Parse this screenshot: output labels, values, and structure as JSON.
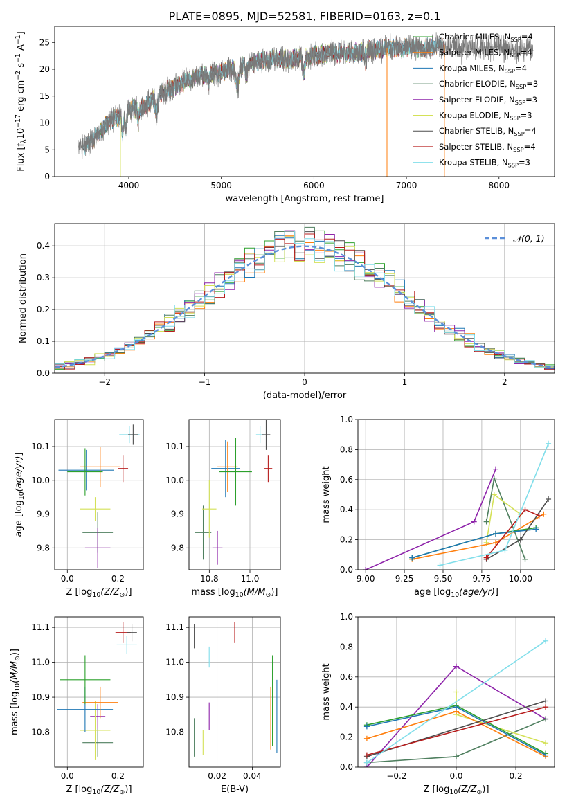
{
  "colors": {
    "chabrier_miles": "#2ca02c",
    "salpeter_miles": "#ff7f0e",
    "kroupa_miles": "#1f77b4",
    "chabrier_elodie": "#4f7f5f",
    "salpeter_elodie": "#8e24aa",
    "kroupa_elodie": "#d4e157",
    "chabrier_stelib": "#4d4d4d",
    "salpeter_stelib": "#b71c1c",
    "kroupa_stelib": "#80deea",
    "normal": "#5b8fd9",
    "grid": "#b0b0b0",
    "spectrum_gray": "#7a7a7a"
  },
  "chart_data": [
    {
      "id": "spectrum",
      "type": "line",
      "title": "PLATE=0895, MJD=52581, FIBERID=0163, z=0.1",
      "xlabel": "wavelength [Angstrom, rest frame]",
      "ylabel": "Flux [f_λ 10^-17 erg cm^-2 s^-1 A^-1]",
      "xlim": [
        3200,
        8600
      ],
      "ylim": [
        0,
        28
      ],
      "xticks": [
        4000,
        5000,
        6000,
        7000,
        8000
      ],
      "yticks": [
        0,
        5,
        10,
        15,
        20,
        25
      ],
      "grid": false,
      "legend_position": "top-right",
      "legend": [
        {
          "label": "Chabrier MILES, N_SSP=4",
          "key": "chabrier_miles"
        },
        {
          "label": "Salpeter MILES, N_SSP=4",
          "key": "salpeter_miles"
        },
        {
          "label": "Kroupa MILES, N_SSP=4",
          "key": "kroupa_miles"
        },
        {
          "label": "Chabrier ELODIE, N_SSP=3",
          "key": "chabrier_elodie"
        },
        {
          "label": "Salpeter ELODIE, N_SSP=3",
          "key": "salpeter_elodie"
        },
        {
          "label": "Kroupa ELODIE, N_SSP=3",
          "key": "kroupa_elodie"
        },
        {
          "label": "Chabrier STELIB, N_SSP=4",
          "key": "chabrier_stelib"
        },
        {
          "label": "Salpeter STELIB, N_SSP=4",
          "key": "salpeter_stelib"
        },
        {
          "label": "Kroupa STELIB, N_SSP=3",
          "key": "kroupa_stelib"
        }
      ],
      "continuum": {
        "x": [
          3450,
          3600,
          3700,
          3800,
          3900,
          4000,
          4100,
          4200,
          4300,
          4400,
          4600,
          4800,
          5000,
          5200,
          5400,
          5600,
          5800,
          6000,
          6200,
          6400,
          6600,
          6800,
          7000,
          7200,
          7400,
          7600,
          7800,
          8000,
          8200,
          8400
        ],
        "y": [
          5.5,
          6.5,
          8.5,
          10.5,
          11,
          12.5,
          12.5,
          13.5,
          15,
          16,
          17.5,
          19,
          19.5,
          20.5,
          21.5,
          22,
          22,
          22.5,
          23,
          23,
          23.5,
          24,
          24,
          24,
          24.5,
          24.5,
          24,
          24,
          23.5,
          23.5
        ]
      },
      "series_ranges": {
        "chabrier_miles": [
          3540,
          7410
        ],
        "salpeter_miles": [
          3540,
          7410
        ],
        "kroupa_miles": [
          3540,
          7410
        ],
        "chabrier_elodie": [
          3900,
          6790
        ],
        "salpeter_elodie": [
          3900,
          6790
        ],
        "kroupa_elodie": [
          3900,
          6790
        ],
        "chabrier_stelib": [
          3500,
          7410
        ],
        "salpeter_stelib": [
          3500,
          7410
        ],
        "kroupa_stelib": [
          3500,
          7410
        ]
      },
      "data_range": [
        3400,
        8370
      ],
      "vertical_drops": [
        {
          "x": 3910,
          "key": "kroupa_elodie"
        },
        {
          "x": 6790,
          "key": "salpeter_miles"
        },
        {
          "x": 7410,
          "key": "salpeter_miles"
        }
      ]
    },
    {
      "id": "histogram",
      "type": "line",
      "xlabel": "(data-model)/error",
      "ylabel": "Normed distribution",
      "xlim": [
        -2.5,
        2.5
      ],
      "ylim": [
        0,
        0.47
      ],
      "xticks": [
        -2,
        -1,
        0,
        1,
        2
      ],
      "yticks": [
        0.0,
        0.1,
        0.2,
        0.3,
        0.4
      ],
      "grid": true,
      "legend_position": "top-right",
      "legend": [
        {
          "label": "𝒩(0, 1)",
          "key": "normal"
        }
      ],
      "bin_edges_start": -2.5,
      "bin_width": 0.1,
      "n_bins": 50
    },
    {
      "id": "age_Z",
      "type": "scatter",
      "xlabel": "Z [log10(Z/Z⊙)]",
      "ylabel": "age  [log10(age/yr)]",
      "xlim": [
        -0.05,
        0.3
      ],
      "ylim": [
        9.735,
        10.18
      ],
      "xticks": [
        0.0,
        0.2
      ],
      "yticks": [
        9.8,
        9.9,
        10.0,
        10.1
      ],
      "grid": true,
      "points": [
        {
          "key": "chabrier_elodie",
          "x": 0.12,
          "y": 9.845,
          "xerr": 0.06,
          "yerr": 0.06
        },
        {
          "key": "salpeter_elodie",
          "x": 0.12,
          "y": 9.8,
          "xerr": 0.05,
          "yerr": 0.06
        },
        {
          "key": "kroupa_elodie",
          "x": 0.11,
          "y": 9.915,
          "xerr": 0.06,
          "yerr": 0.035
        },
        {
          "key": "kroupa_miles",
          "x": 0.075,
          "y": 10.03,
          "xerr": 0.11,
          "yerr": 0.06
        },
        {
          "key": "salpeter_miles",
          "x": 0.13,
          "y": 10.04,
          "xerr": 0.08,
          "yerr": 0.06
        },
        {
          "key": "chabrier_miles",
          "x": 0.07,
          "y": 10.025,
          "xerr": 0.07,
          "yerr": 0.07
        },
        {
          "key": "salpeter_stelib",
          "x": 0.22,
          "y": 10.035,
          "xerr": 0.02,
          "yerr": 0.04
        },
        {
          "key": "kroupa_stelib",
          "x": 0.245,
          "y": 10.135,
          "xerr": 0.04,
          "yerr": 0.025
        },
        {
          "key": "chabrier_stelib",
          "x": 0.26,
          "y": 10.135,
          "xerr": 0.02,
          "yerr": 0.03
        }
      ]
    },
    {
      "id": "age_mass",
      "type": "scatter",
      "xlabel": "mass [log10(M/M⊙)]",
      "ylabel": "",
      "xlim": [
        10.7,
        11.15
      ],
      "ylim": [
        9.735,
        10.18
      ],
      "xticks": [
        10.8,
        11.0
      ],
      "yticks": [
        9.8,
        9.9,
        10.0,
        10.1
      ],
      "grid": true,
      "points": [
        {
          "key": "chabrier_elodie",
          "x": 10.77,
          "y": 9.845,
          "xerr": 0.04,
          "yerr": 0.08
        },
        {
          "key": "salpeter_elodie",
          "x": 10.84,
          "y": 9.8,
          "xerr": 0.025,
          "yerr": 0.05
        },
        {
          "key": "kroupa_elodie",
          "x": 10.8,
          "y": 9.915,
          "xerr": 0.035,
          "yerr": 0.085
        },
        {
          "key": "kroupa_miles",
          "x": 10.88,
          "y": 10.035,
          "xerr": 0.07,
          "yerr": 0.085
        },
        {
          "key": "salpeter_miles",
          "x": 10.89,
          "y": 10.04,
          "xerr": 0.05,
          "yerr": 0.075
        },
        {
          "key": "chabrier_miles",
          "x": 10.93,
          "y": 10.025,
          "xerr": 0.08,
          "yerr": 0.1
        },
        {
          "key": "salpeter_stelib",
          "x": 11.09,
          "y": 10.035,
          "xerr": 0.02,
          "yerr": 0.04
        },
        {
          "key": "kroupa_stelib",
          "x": 11.05,
          "y": 10.135,
          "xerr": 0.02,
          "yerr": 0.025
        },
        {
          "key": "chabrier_stelib",
          "x": 11.08,
          "y": 10.135,
          "xerr": 0.02,
          "yerr": 0.045
        }
      ]
    },
    {
      "id": "weight_age",
      "type": "line",
      "xlabel": "age  [log10(age/yr)]",
      "ylabel": "mass weight",
      "xlim": [
        8.95,
        10.22
      ],
      "ylim": [
        0.0,
        1.0
      ],
      "xticks": [
        9.0,
        9.25,
        9.5,
        9.75,
        10.0
      ],
      "yticks": [
        0.0,
        0.2,
        0.4,
        0.6,
        0.8,
        1.0
      ],
      "grid": true,
      "series": [
        {
          "key": "salpeter_elodie",
          "x": [
            9.0,
            9.7,
            9.84
          ],
          "y": [
            0.0,
            0.32,
            0.67
          ]
        },
        {
          "key": "chabrier_elodie",
          "x": [
            9.78,
            9.83,
            10.03
          ],
          "y": [
            0.32,
            0.61,
            0.07
          ]
        },
        {
          "key": "kroupa_elodie",
          "x": [
            9.78,
            9.83,
            10.0
          ],
          "y": [
            0.18,
            0.5,
            0.37
          ]
        },
        {
          "key": "salpeter_miles",
          "x": [
            9.3,
            9.84,
            10.15
          ],
          "y": [
            0.07,
            0.18,
            0.37
          ]
        },
        {
          "key": "chabrier_miles",
          "x": [
            9.3,
            9.84,
            10.1
          ],
          "y": [
            0.08,
            0.24,
            0.28
          ]
        },
        {
          "key": "kroupa_miles",
          "x": [
            9.3,
            9.84,
            10.1
          ],
          "y": [
            0.08,
            0.24,
            0.27
          ]
        },
        {
          "key": "chabrier_stelib",
          "x": [
            9.78,
            10.0,
            10.18
          ],
          "y": [
            0.07,
            0.2,
            0.47
          ]
        },
        {
          "key": "salpeter_stelib",
          "x": [
            9.78,
            10.03,
            10.12
          ],
          "y": [
            0.08,
            0.4,
            0.36
          ]
        },
        {
          "key": "kroupa_stelib",
          "x": [
            9.48,
            9.9,
            10.18
          ],
          "y": [
            0.03,
            0.13,
            0.84
          ]
        }
      ]
    },
    {
      "id": "mass_Z",
      "type": "scatter",
      "xlabel": "Z [log10(Z/Z⊙)]",
      "ylabel": "mass [log10(M/M⊙)]",
      "xlim": [
        -0.05,
        0.3
      ],
      "ylim": [
        10.7,
        11.13
      ],
      "xticks": [
        0.0,
        0.2
      ],
      "yticks": [
        10.8,
        10.9,
        11.0,
        11.1
      ],
      "grid": true,
      "points": [
        {
          "key": "chabrier_elodie",
          "x": 0.12,
          "y": 10.77,
          "xerr": 0.06,
          "yerr": 0.04
        },
        {
          "key": "salpeter_elodie",
          "x": 0.12,
          "y": 10.845,
          "xerr": 0.03,
          "yerr": 0.035
        },
        {
          "key": "kroupa_elodie",
          "x": 0.11,
          "y": 10.805,
          "xerr": 0.06,
          "yerr": 0.085
        },
        {
          "key": "kroupa_miles",
          "x": 0.07,
          "y": 10.865,
          "xerr": 0.11,
          "yerr": 0.065
        },
        {
          "key": "salpeter_miles",
          "x": 0.13,
          "y": 10.885,
          "xerr": 0.07,
          "yerr": 0.045
        },
        {
          "key": "chabrier_miles",
          "x": 0.07,
          "y": 10.95,
          "xerr": 0.1,
          "yerr": 0.07
        },
        {
          "key": "salpeter_stelib",
          "x": 0.22,
          "y": 11.085,
          "xerr": 0.03,
          "yerr": 0.03
        },
        {
          "key": "kroupa_stelib",
          "x": 0.235,
          "y": 11.05,
          "xerr": 0.04,
          "yerr": 0.025
        },
        {
          "key": "chabrier_stelib",
          "x": 0.255,
          "y": 11.085,
          "xerr": 0.02,
          "yerr": 0.025
        }
      ]
    },
    {
      "id": "mass_ebv",
      "type": "scatter",
      "xlabel": "E(B-V)",
      "ylabel": "",
      "xlim": [
        0.004,
        0.056
      ],
      "ylim": [
        10.7,
        11.13
      ],
      "xticks": [
        0.02,
        0.04
      ],
      "yticks": [
        10.8,
        10.9,
        11.0,
        11.1
      ],
      "grid": true,
      "points": [
        {
          "key": "chabrier_elodie",
          "x": 0.007,
          "y": 10.785,
          "xerr": 0.0,
          "yerr": 0.055
        },
        {
          "key": "chabrier_stelib",
          "x": 0.007,
          "y": 11.075,
          "xerr": 0.0,
          "yerr": 0.035
        },
        {
          "key": "kroupa_elodie",
          "x": 0.012,
          "y": 10.77,
          "xerr": 0.0,
          "yerr": 0.035
        },
        {
          "key": "salpeter_elodie",
          "x": 0.0155,
          "y": 10.845,
          "xerr": 0.0,
          "yerr": 0.04
        },
        {
          "key": "kroupa_stelib",
          "x": 0.0155,
          "y": 11.015,
          "xerr": 0.0,
          "yerr": 0.03
        },
        {
          "key": "salpeter_stelib",
          "x": 0.03,
          "y": 11.085,
          "xerr": 0.0,
          "yerr": 0.03
        },
        {
          "key": "salpeter_miles",
          "x": 0.0505,
          "y": 10.84,
          "xerr": 0.0,
          "yerr": 0.09
        },
        {
          "key": "chabrier_miles",
          "x": 0.0515,
          "y": 10.89,
          "xerr": 0.0,
          "yerr": 0.13
        },
        {
          "key": "kroupa_miles",
          "x": 0.054,
          "y": 10.845,
          "xerr": 0.0,
          "yerr": 0.105
        }
      ]
    },
    {
      "id": "weight_Z",
      "type": "line",
      "xlabel": "Z [log10(Z/Z⊙)]",
      "ylabel": "mass weight",
      "xlim": [
        -0.33,
        0.33
      ],
      "ylim": [
        0.0,
        1.0
      ],
      "xticks": [
        -0.2,
        0.0,
        0.2
      ],
      "yticks": [
        0.0,
        0.2,
        0.4,
        0.6,
        0.8,
        1.0
      ],
      "grid": true,
      "series": [
        {
          "key": "salpeter_elodie",
          "x": [
            -0.3,
            0.0,
            0.3
          ],
          "y": [
            0.0,
            0.67,
            0.32
          ]
        },
        {
          "key": "chabrier_elodie",
          "x": [
            -0.3,
            0.0,
            0.3
          ],
          "y": [
            0.03,
            0.07,
            0.32
          ]
        },
        {
          "key": "kroupa_elodie",
          "x": [
            0.0,
            0.0,
            0.3
          ],
          "y": [
            0.5,
            0.35,
            0.16
          ]
        },
        {
          "key": "salpeter_miles",
          "x": [
            -0.3,
            0.0,
            0.3
          ],
          "y": [
            0.19,
            0.37,
            0.07
          ]
        },
        {
          "key": "chabrier_miles",
          "x": [
            -0.3,
            0.0,
            0.3
          ],
          "y": [
            0.28,
            0.41,
            0.09
          ]
        },
        {
          "key": "kroupa_miles",
          "x": [
            -0.3,
            0.0,
            0.3
          ],
          "y": [
            0.27,
            0.4,
            0.08
          ]
        },
        {
          "key": "chabrier_stelib",
          "x": [
            -0.3,
            0.3
          ],
          "y": [
            0.07,
            0.44
          ]
        },
        {
          "key": "salpeter_stelib",
          "x": [
            -0.3,
            0.3
          ],
          "y": [
            0.08,
            0.4
          ]
        },
        {
          "key": "kroupa_stelib",
          "x": [
            -0.3,
            0.3
          ],
          "y": [
            0.03,
            0.84
          ]
        }
      ]
    }
  ]
}
